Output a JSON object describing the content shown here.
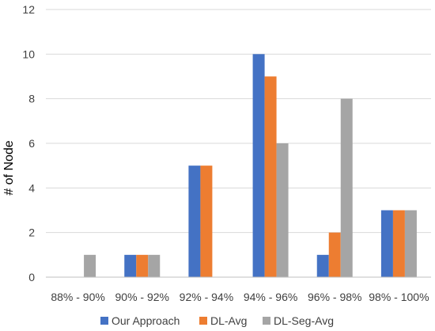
{
  "chart_data": {
    "type": "bar",
    "title": "",
    "xlabel": "",
    "ylabel": "# of Node",
    "ylim": [
      0,
      12
    ],
    "yticks": [
      0,
      2,
      4,
      6,
      8,
      10,
      12
    ],
    "categories": [
      "88% - 90%",
      "90% - 92%",
      "92% - 94%",
      "94% - 96%",
      "96% - 98%",
      "98% - 100%"
    ],
    "series": [
      {
        "name": "Our Approach",
        "color": "#4472c4",
        "values": [
          0,
          1,
          5,
          10,
          1,
          3
        ]
      },
      {
        "name": "DL-Avg",
        "color": "#ed7d31",
        "values": [
          0,
          1,
          5,
          9,
          2,
          3
        ]
      },
      {
        "name": "DL-Seg-Avg",
        "color": "#a5a5a5",
        "values": [
          1,
          1,
          0,
          6,
          8,
          3
        ]
      }
    ],
    "grid": true,
    "legend_position": "bottom"
  }
}
